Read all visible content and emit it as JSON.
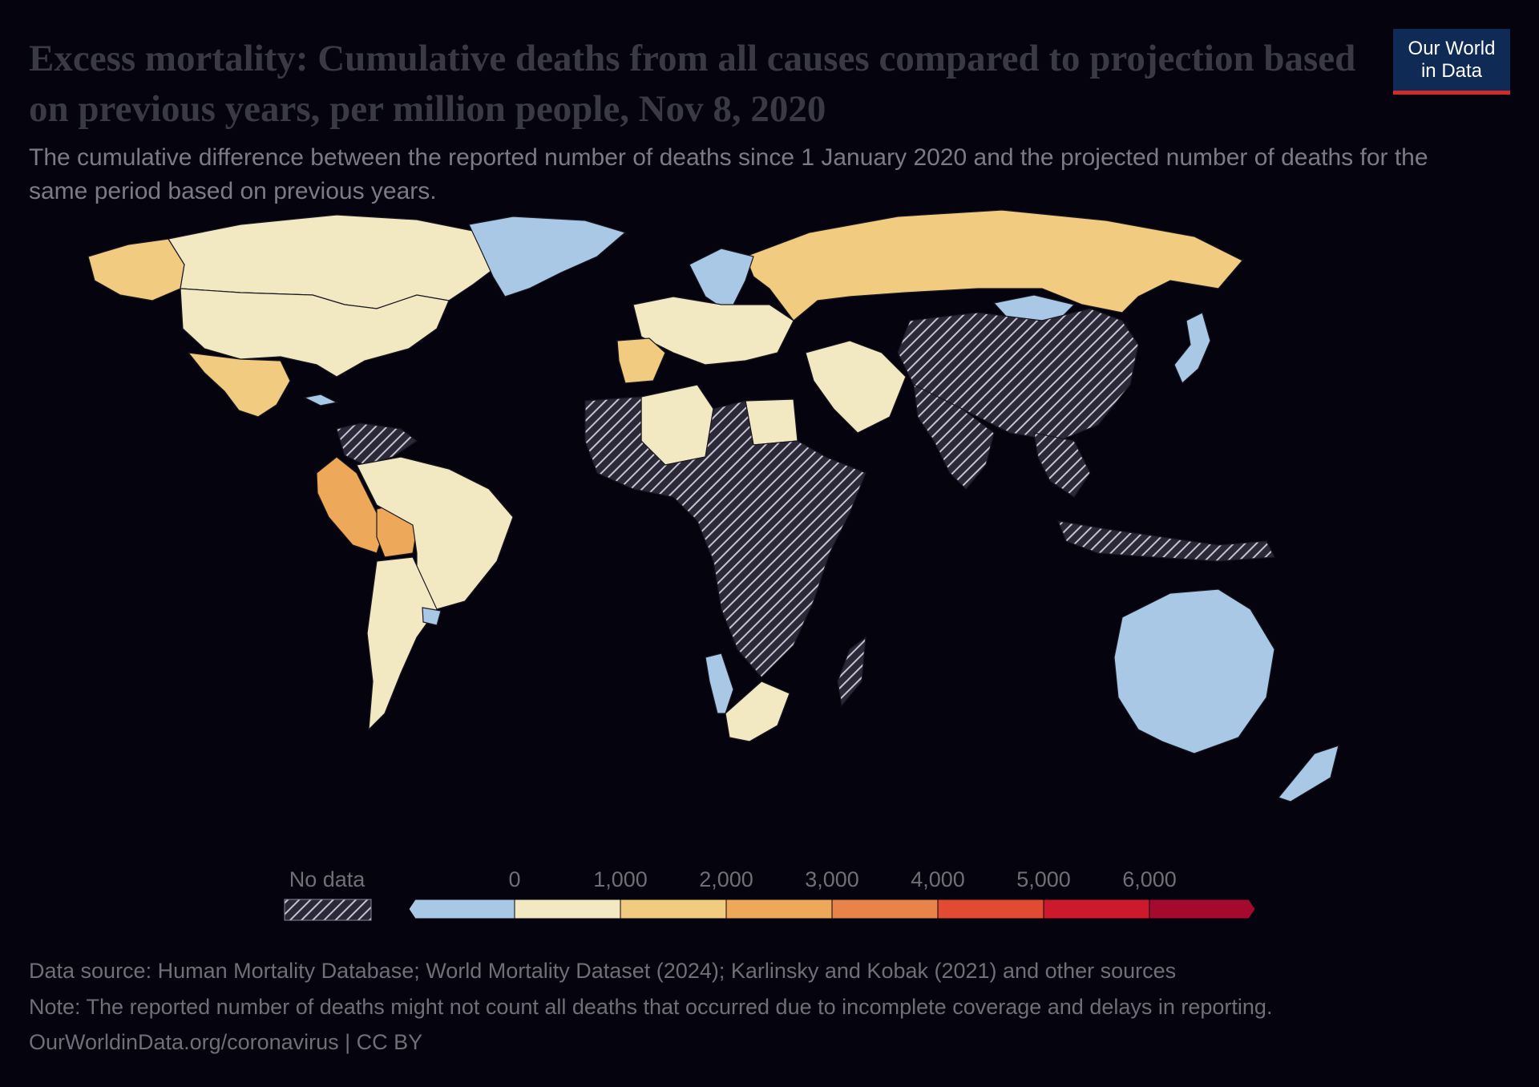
{
  "title": "Excess mortality: Cumulative deaths from all causes compared to projection based on previous years, per million people, Nov 8, 2020",
  "subtitle": "The cumulative difference between the reported number of deaths since 1 January 2020 and the projected number of deaths for the same period based on previous years.",
  "logo": {
    "line1": "Our World",
    "line2": "in Data"
  },
  "legend": {
    "no_data_label": "No data",
    "ticks": [
      "0",
      "1,000",
      "2,000",
      "3,000",
      "4,000",
      "5,000",
      "6,000"
    ],
    "bins": [
      {
        "from": null,
        "to": 0,
        "color": "#a9c8e6"
      },
      {
        "from": 0,
        "to": 1000,
        "color": "#f2e8c2"
      },
      {
        "from": 1000,
        "to": 2000,
        "color": "#f0cb80"
      },
      {
        "from": 2000,
        "to": 3000,
        "color": "#eea85a"
      },
      {
        "from": 3000,
        "to": 4000,
        "color": "#e8834a"
      },
      {
        "from": 4000,
        "to": 5000,
        "color": "#e34a33"
      },
      {
        "from": 5000,
        "to": 6000,
        "color": "#cc1a2c"
      },
      {
        "from": 6000,
        "to": null,
        "color": "#a50a2e"
      }
    ],
    "no_data_color": "#c5c2d2"
  },
  "map_data": {
    "regions": [
      {
        "name": "Alaska",
        "value": "1,000–2,000",
        "color": "#f0cb80"
      },
      {
        "name": "Canada",
        "value": "0–1,000",
        "color": "#f2e8c2"
      },
      {
        "name": "United States",
        "value": "0–1,000",
        "color": "#f2e8c2"
      },
      {
        "name": "Greenland",
        "value": "<0",
        "color": "#a9c8e6"
      },
      {
        "name": "Mexico",
        "value": "1,000–2,000",
        "color": "#f0cb80"
      },
      {
        "name": "Cuba",
        "value": "<0",
        "color": "#a9c8e6"
      },
      {
        "name": "Peru",
        "value": "2,000–3,000",
        "color": "#eea85a"
      },
      {
        "name": "Bolivia",
        "value": "2,000–3,000",
        "color": "#eea85a"
      },
      {
        "name": "Brazil",
        "value": "0–1,000",
        "color": "#f2e8c2"
      },
      {
        "name": "Argentina",
        "value": "0–1,000",
        "color": "#f2e8c2"
      },
      {
        "name": "Uruguay",
        "value": "<0",
        "color": "#a9c8e6"
      },
      {
        "name": "Russia",
        "value": "1,000–2,000",
        "color": "#f0cb80"
      },
      {
        "name": "Spain",
        "value": "1,000–2,000",
        "color": "#f0cb80"
      },
      {
        "name": "Norway",
        "value": "<0",
        "color": "#a9c8e6"
      },
      {
        "name": "Mongolia",
        "value": "<0",
        "color": "#a9c8e6"
      },
      {
        "name": "Japan",
        "value": "<0",
        "color": "#a9c8e6"
      },
      {
        "name": "Australia",
        "value": "<0",
        "color": "#a9c8e6"
      },
      {
        "name": "New Zealand",
        "value": "<0",
        "color": "#a9c8e6"
      },
      {
        "name": "South Africa",
        "value": "0–1,000",
        "color": "#f2e8c2"
      },
      {
        "name": "Namibia",
        "value": "<0",
        "color": "#a9c8e6"
      },
      {
        "name": "Egypt",
        "value": "0–1,000",
        "color": "#f2e8c2"
      },
      {
        "name": "Algeria",
        "value": "0–1,000",
        "color": "#f2e8c2"
      },
      {
        "name": "China",
        "value": "No data",
        "color": "#c5c2d2"
      },
      {
        "name": "India",
        "value": "No data",
        "color": "#c5c2d2"
      },
      {
        "name": "Central Africa",
        "value": "No data",
        "color": "#c5c2d2"
      }
    ]
  },
  "footer": {
    "source": "Data source: Human Mortality Database; World Mortality Dataset (2024); Karlinsky and Kobak (2021) and other sources",
    "note": "Note: The reported number of deaths might not count all deaths that occurred due to incomplete coverage and delays in reporting.",
    "credit": "OurWorldinData.org/coronavirus | CC BY"
  }
}
